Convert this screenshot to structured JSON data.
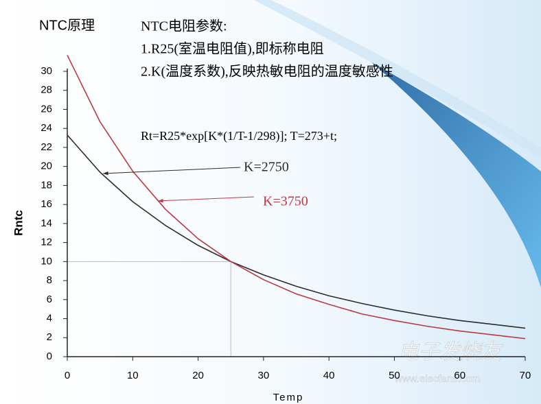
{
  "chart_data": {
    "type": "line",
    "title": "NTC原理",
    "annotations": [
      "NTC电阻参数:",
      "1.R25(室温电阻值),即标称电阻",
      "2.K(温度系数),反映热敏电阻的温度敏感性",
      "Rt=R25*exp[K*(1/T-1/298)];  T=273+t;"
    ],
    "x_label": "Temp",
    "y_label": "Rntc",
    "x": [
      0,
      5,
      10,
      15,
      20,
      25,
      30,
      35,
      40,
      45,
      50,
      55,
      60,
      65,
      70
    ],
    "series": [
      {
        "name": "K=2750",
        "color": "#2b2b2b",
        "values": [
          23.3,
          19.4,
          16.3,
          13.8,
          11.7,
          10,
          8.6,
          7.4,
          6.4,
          5.6,
          4.9,
          4.3,
          3.8,
          3.4,
          3.0
        ]
      },
      {
        "name": "K=3750",
        "color": "#b83a42",
        "values": [
          31.7,
          24.7,
          19.5,
          15.5,
          12.4,
          10,
          8.1,
          6.6,
          5.5,
          4.5,
          3.8,
          3.2,
          2.7,
          2.3,
          1.9
        ]
      }
    ],
    "reference_x": 25,
    "reference_y": 10,
    "xlim": [
      0,
      70
    ],
    "xticks": [
      0,
      10,
      20,
      30,
      40,
      50,
      60,
      70
    ],
    "ylim": [
      0,
      30
    ],
    "yticks": [
      0,
      2,
      4,
      6,
      8,
      10,
      12,
      14,
      16,
      18,
      20,
      22,
      24,
      26,
      28,
      30
    ],
    "watermark": [
      "电子发烧友",
      "www.elecfans.com"
    ]
  }
}
